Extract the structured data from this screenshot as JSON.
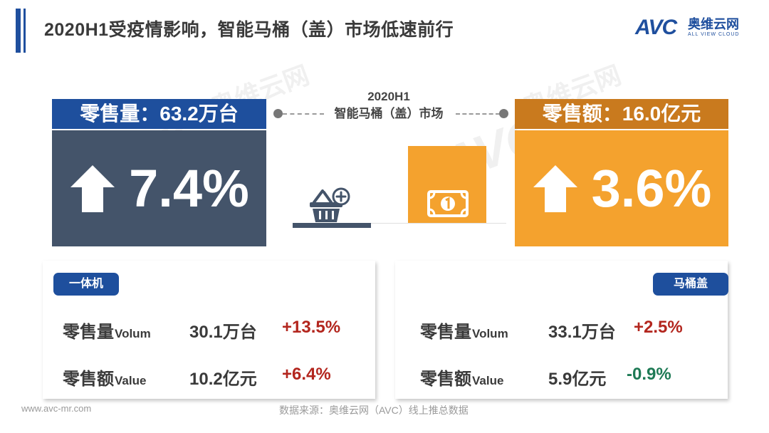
{
  "header": {
    "title": "2020H1受疫情影响，智能马桶（盖）市场低速前行",
    "logo_text": "AVC",
    "logo_cn": "奥维云网",
    "logo_en": "ALL VIEW CLOUD"
  },
  "watermark": {
    "brand": "AVC",
    "cn": "奥维云网",
    "en": "ALL VIEW CLOUD"
  },
  "center": {
    "period": "2020H1",
    "market": "智能马桶（盖）市场",
    "basket_icon": "shopping-basket-plus-icon",
    "money_icon": "banknote-icon"
  },
  "left_block": {
    "header": "零售量：63.2万台",
    "growth": "7.4%",
    "arrow_icon": "arrow-up-icon",
    "color": "#44546a"
  },
  "right_block": {
    "header": "零售额：16.0亿元",
    "growth": "3.6%",
    "arrow_icon": "arrow-up-icon",
    "color": "#f4a22e"
  },
  "cards": [
    {
      "tag": "一体机",
      "rows": [
        {
          "label": "零售量",
          "label_en": "Volum",
          "value": "30.1万台",
          "change": "+13.5%",
          "change_color": "#b3261e"
        },
        {
          "label": "零售额",
          "label_en": "Value",
          "value": "10.2亿元",
          "change": "+6.4%",
          "change_color": "#b3261e"
        }
      ]
    },
    {
      "tag": "马桶盖",
      "rows": [
        {
          "label": "零售量",
          "label_en": "Volum",
          "value": "33.1万台",
          "change": "+2.5%",
          "change_color": "#b3261e"
        },
        {
          "label": "零售额",
          "label_en": "Value",
          "value": "5.9亿元",
          "change": "-0.9%",
          "change_color": "#1e7a55"
        }
      ]
    }
  ],
  "footer": {
    "url": "www.avc-mr.com",
    "source": "数据来源：奥维云网（AVC）线上推总数据"
  }
}
